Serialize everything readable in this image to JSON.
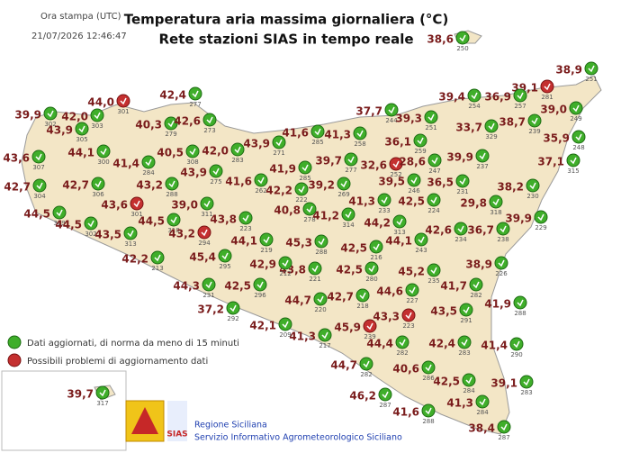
{
  "header": {
    "stamp_label": "Ora stampa (UTC)",
    "timestamp": "21/07/2026 12:46:47",
    "title_line1": "Temperatura aria massima giornaliera (°C)",
    "title_line2": "Rete stazioni SIAS in tempo reale"
  },
  "legend": {
    "updated": "Dati aggiornati, di norma da meno di 15 minuti",
    "problem": "Possibili problemi di aggiornamento dati"
  },
  "footer": {
    "line1": "Regione Siciliana",
    "line2": "Servizio Informativo Agrometeorologico Siciliano",
    "logo": "SIAS"
  },
  "stations": [
    {
      "temperature": "38,6",
      "id": "250",
      "status": "updated"
    },
    {
      "temperature": "38,9",
      "id": "251",
      "status": "updated"
    },
    {
      "temperature": "39,1",
      "id": "281",
      "status": "problem"
    },
    {
      "temperature": "39,4",
      "id": "254",
      "status": "updated"
    },
    {
      "temperature": "36,9",
      "id": "257",
      "status": "updated"
    },
    {
      "temperature": "39,0",
      "id": "249",
      "status": "updated"
    },
    {
      "temperature": "37,7",
      "id": "244",
      "status": "updated"
    },
    {
      "temperature": "39,3",
      "id": "251",
      "status": "updated"
    },
    {
      "temperature": "33,7",
      "id": "329",
      "status": "updated"
    },
    {
      "temperature": "38,7",
      "id": "239",
      "status": "updated"
    },
    {
      "temperature": "35,9",
      "id": "248",
      "status": "updated"
    },
    {
      "temperature": "41,6",
      "id": "285",
      "status": "updated"
    },
    {
      "temperature": "41,3",
      "id": "258",
      "status": "updated"
    },
    {
      "temperature": "36,1",
      "id": "259",
      "status": "updated"
    },
    {
      "temperature": "37,1",
      "id": "315",
      "status": "updated"
    },
    {
      "temperature": "39,9",
      "id": "237",
      "status": "updated"
    },
    {
      "temperature": "32,6",
      "id": "252",
      "status": "problem"
    },
    {
      "temperature": "28,6",
      "id": "247",
      "status": "updated"
    },
    {
      "temperature": "39,7",
      "id": "277",
      "status": "updated"
    },
    {
      "temperature": "39,5",
      "id": "246",
      "status": "updated"
    },
    {
      "temperature": "36,5",
      "id": "231",
      "status": "updated"
    },
    {
      "temperature": "38,2",
      "id": "230",
      "status": "updated"
    },
    {
      "temperature": "29,8",
      "id": "318",
      "status": "updated"
    },
    {
      "temperature": "41,9",
      "id": "285",
      "status": "updated"
    },
    {
      "temperature": "39,2",
      "id": "269",
      "status": "updated"
    },
    {
      "temperature": "42,2",
      "id": "222",
      "status": "updated"
    },
    {
      "temperature": "41,3",
      "id": "233",
      "status": "updated"
    },
    {
      "temperature": "42,5",
      "id": "224",
      "status": "updated"
    },
    {
      "temperature": "39,9",
      "id": "229",
      "status": "updated"
    },
    {
      "temperature": "40,8",
      "id": "278",
      "status": "updated"
    },
    {
      "temperature": "41,2",
      "id": "314",
      "status": "updated"
    },
    {
      "temperature": "44,2",
      "id": "313",
      "status": "updated"
    },
    {
      "temperature": "42,6",
      "id": "234",
      "status": "updated"
    },
    {
      "temperature": "36,7",
      "id": "238",
      "status": "updated"
    },
    {
      "temperature": "45,3",
      "id": "288",
      "status": "updated"
    },
    {
      "temperature": "42,5",
      "id": "216",
      "status": "updated"
    },
    {
      "temperature": "44,1",
      "id": "243",
      "status": "updated"
    },
    {
      "temperature": "38,9",
      "id": "226",
      "status": "updated"
    },
    {
      "temperature": "43,8",
      "id": "221",
      "status": "updated"
    },
    {
      "temperature": "42,5",
      "id": "280",
      "status": "updated"
    },
    {
      "temperature": "45,2",
      "id": "235",
      "status": "updated"
    },
    {
      "temperature": "41,7",
      "id": "282",
      "status": "updated"
    },
    {
      "temperature": "41,9",
      "id": "288",
      "status": "updated"
    },
    {
      "temperature": "44,7",
      "id": "220",
      "status": "updated"
    },
    {
      "temperature": "42,7",
      "id": "218",
      "status": "updated"
    },
    {
      "temperature": "44,6",
      "id": "227",
      "status": "updated"
    },
    {
      "temperature": "43,5",
      "id": "291",
      "status": "updated"
    },
    {
      "temperature": "43,3",
      "id": "223",
      "status": "problem"
    },
    {
      "temperature": "45,9",
      "id": "239",
      "status": "problem"
    },
    {
      "temperature": "41,3",
      "id": "217",
      "status": "updated"
    },
    {
      "temperature": "44,4",
      "id": "282",
      "status": "updated"
    },
    {
      "temperature": "42,4",
      "id": "283",
      "status": "updated"
    },
    {
      "temperature": "41,4",
      "id": "290",
      "status": "updated"
    },
    {
      "temperature": "44,7",
      "id": "282",
      "status": "updated"
    },
    {
      "temperature": "40,6",
      "id": "286",
      "status": "updated"
    },
    {
      "temperature": "42,5",
      "id": "284",
      "status": "updated"
    },
    {
      "temperature": "39,1",
      "id": "283",
      "status": "updated"
    },
    {
      "temperature": "46,2",
      "id": "287",
      "status": "updated"
    },
    {
      "temperature": "41,6",
      "id": "288",
      "status": "updated"
    },
    {
      "temperature": "41,3",
      "id": "284",
      "status": "updated"
    },
    {
      "temperature": "38,4",
      "id": "287",
      "status": "updated"
    },
    {
      "temperature": "39,7",
      "id": "317",
      "status": "updated"
    },
    {
      "temperature": "39,9",
      "id": "302",
      "status": "updated"
    },
    {
      "temperature": "42,0",
      "id": "303",
      "status": "updated"
    },
    {
      "temperature": "44,0",
      "id": "301",
      "status": "problem"
    },
    {
      "temperature": "42,4",
      "id": "277",
      "status": "updated"
    },
    {
      "temperature": "40,3",
      "id": "279",
      "status": "updated"
    },
    {
      "temperature": "42,6",
      "id": "273",
      "status": "updated"
    },
    {
      "temperature": "43,9",
      "id": "305",
      "status": "updated"
    },
    {
      "temperature": "44,1",
      "id": "300",
      "status": "updated"
    },
    {
      "temperature": "43,6",
      "id": "307",
      "status": "updated"
    },
    {
      "temperature": "41,4",
      "id": "284",
      "status": "updated"
    },
    {
      "temperature": "40,5",
      "id": "308",
      "status": "updated"
    },
    {
      "temperature": "42,0",
      "id": "283",
      "status": "updated"
    },
    {
      "temperature": "43,9",
      "id": "271",
      "status": "updated"
    },
    {
      "temperature": "43,9",
      "id": "275",
      "status": "updated"
    },
    {
      "temperature": "42,7",
      "id": "304",
      "status": "updated"
    },
    {
      "temperature": "42,7",
      "id": "306",
      "status": "updated"
    },
    {
      "temperature": "43,2",
      "id": "288",
      "status": "updated"
    },
    {
      "temperature": "41,6",
      "id": "262",
      "status": "updated"
    },
    {
      "temperature": "43,6",
      "id": "301",
      "status": "problem"
    },
    {
      "temperature": "39,0",
      "id": "311",
      "status": "updated"
    },
    {
      "temperature": "44,5",
      "id": "309",
      "status": "updated"
    },
    {
      "temperature": "44,5",
      "id": "302",
      "status": "updated"
    },
    {
      "temperature": "44,5",
      "id": "310",
      "status": "updated"
    },
    {
      "temperature": "43,8",
      "id": "223",
      "status": "updated"
    },
    {
      "temperature": "43,5",
      "id": "313",
      "status": "updated"
    },
    {
      "temperature": "43,2",
      "id": "294",
      "status": "problem"
    },
    {
      "temperature": "44,1",
      "id": "219",
      "status": "updated"
    },
    {
      "temperature": "42,2",
      "id": "213",
      "status": "updated"
    },
    {
      "temperature": "45,4",
      "id": "295",
      "status": "updated"
    },
    {
      "temperature": "42,9",
      "id": "212",
      "status": "updated"
    },
    {
      "temperature": "44,3",
      "id": "231",
      "status": "updated"
    },
    {
      "temperature": "42,5",
      "id": "296",
      "status": "updated"
    },
    {
      "temperature": "37,2",
      "id": "292",
      "status": "updated"
    },
    {
      "temperature": "42,1",
      "id": "209",
      "status": "updated"
    }
  ]
}
